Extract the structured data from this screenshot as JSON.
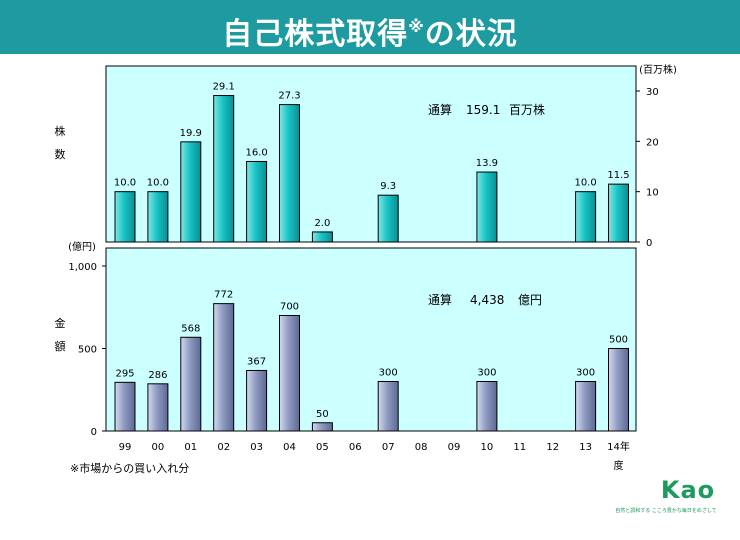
{
  "title": {
    "main": "自己株式取得",
    "mark": "※",
    "tail": "の状況"
  },
  "chart_data": [
    {
      "type": "bar",
      "categories": [
        "99",
        "00",
        "01",
        "02",
        "03",
        "04",
        "05",
        "06",
        "07",
        "08",
        "09",
        "10",
        "11",
        "12",
        "13",
        "14年度"
      ],
      "values": [
        10.0,
        10.0,
        19.9,
        29.1,
        16.0,
        27.3,
        2.0,
        null,
        9.3,
        null,
        null,
        13.9,
        null,
        null,
        10.0,
        11.5
      ],
      "value_labels": [
        "10.0",
        "10.0",
        "19.9",
        "29.1",
        "16.0",
        "27.3",
        "2.0",
        "",
        "9.3",
        "",
        "",
        "13.9",
        "",
        "",
        "10.0",
        "11.5"
      ],
      "ylabel": "株数",
      "unit": "(百万株)",
      "ylim": [
        0,
        30
      ],
      "yticks": [
        "0",
        "10",
        "20",
        "30"
      ],
      "axis_side": "right",
      "annotation": {
        "label": "通算",
        "value": "159.1",
        "unit": "百万株"
      },
      "bar_color": "#19c3c5"
    },
    {
      "type": "bar",
      "categories": [
        "99",
        "00",
        "01",
        "02",
        "03",
        "04",
        "05",
        "06",
        "07",
        "08",
        "09",
        "10",
        "11",
        "12",
        "13",
        "14年度"
      ],
      "values": [
        295,
        286,
        568,
        772,
        367,
        700,
        50,
        null,
        300,
        null,
        null,
        300,
        null,
        null,
        300,
        500
      ],
      "value_labels": [
        "295",
        "286",
        "568",
        "772",
        "367",
        "700",
        "50",
        "",
        "300",
        "",
        "",
        "300",
        "",
        "",
        "300",
        "500"
      ],
      "ylabel": "金額",
      "unit": "(億円)",
      "ylim": [
        0,
        1000
      ],
      "yticks": [
        "0",
        "500",
        "1,000"
      ],
      "axis_side": "left",
      "annotation": {
        "label": "通算",
        "value": "4,438",
        "unit": "億円"
      },
      "bar_color": "#8f9bc2"
    }
  ],
  "x_axis": {
    "labels": [
      "99",
      "00",
      "01",
      "02",
      "03",
      "04",
      "05",
      "06",
      "07",
      "08",
      "09",
      "10",
      "11",
      "12",
      "13",
      "14年"
    ],
    "last_suffix": "度"
  },
  "footnote": "※市場からの買い入れ分",
  "logo": {
    "text": "Kao",
    "slogan": "自然と調和する こころ豊かな毎日をめざして",
    "color": "#1d9a5f"
  },
  "colors": {
    "title_bar": "#1e9ba0",
    "panel_bg": "#ccffff"
  }
}
